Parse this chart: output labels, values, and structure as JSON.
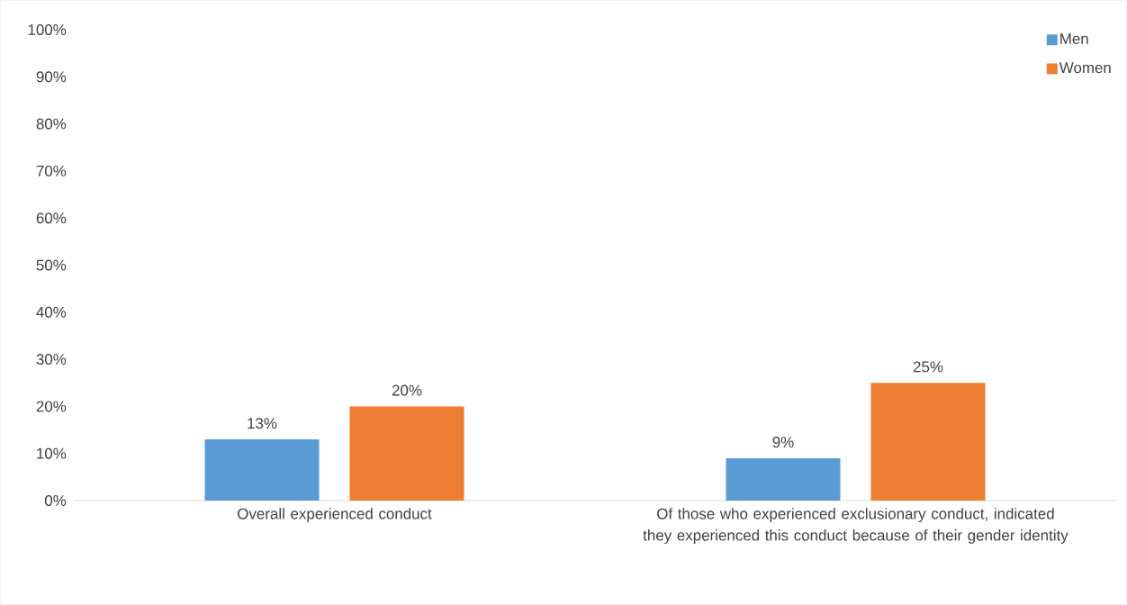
{
  "chart_data": {
    "type": "bar",
    "categories": [
      "Overall experienced conduct",
      "Of those who experienced exclusionary conduct, indicated they experienced this conduct because of their gender identity"
    ],
    "series": [
      {
        "name": "Men",
        "color": "#5b9bd5",
        "values": [
          13,
          9
        ],
        "value_labels": [
          "13%",
          "9%"
        ]
      },
      {
        "name": "Women",
        "color": "#ed7d31",
        "values": [
          20,
          25
        ],
        "value_labels": [
          "20%",
          "25%"
        ]
      }
    ],
    "ylim": [
      0,
      100
    ],
    "yticks": [
      {
        "value": 0,
        "label": "0%"
      },
      {
        "value": 10,
        "label": "10%"
      },
      {
        "value": 20,
        "label": "20%"
      },
      {
        "value": 30,
        "label": "30%"
      },
      {
        "value": 40,
        "label": "40%"
      },
      {
        "value": 50,
        "label": "50%"
      },
      {
        "value": 60,
        "label": "60%"
      },
      {
        "value": 70,
        "label": "70%"
      },
      {
        "value": 80,
        "label": "80%"
      },
      {
        "value": 90,
        "label": "90%"
      },
      {
        "value": 100,
        "label": "100%"
      }
    ],
    "legend": "top right"
  }
}
